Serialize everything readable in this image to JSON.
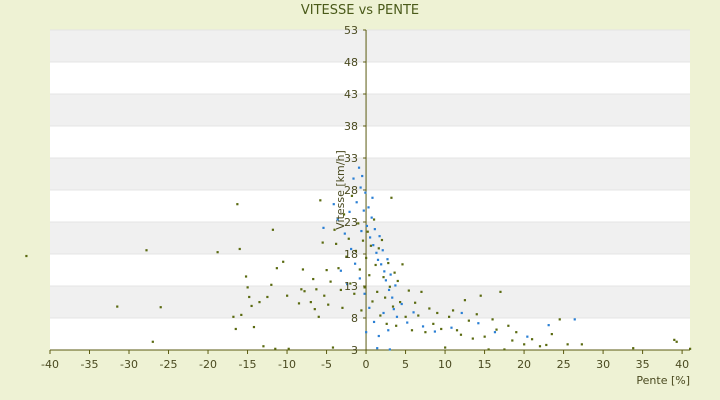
{
  "chart_data": {
    "type": "scatter",
    "title": "VITESSE vs PENTE",
    "xlabel": "Pente [%]",
    "ylabel": "Vitesse [km/h]",
    "xlim": [
      -40,
      41
    ],
    "ylim": [
      3,
      53
    ],
    "x_ticks": [
      -40,
      -35,
      -30,
      -25,
      -20,
      -15,
      -10,
      -5,
      0,
      5,
      10,
      15,
      20,
      25,
      30,
      35,
      40
    ],
    "y_ticks": [
      3,
      8,
      13,
      18,
      23,
      28,
      33,
      38,
      43,
      48,
      53
    ],
    "grid": true,
    "legend": "none",
    "colors": {
      "background": "#eef2d4",
      "band_light": "#ffffff",
      "band_grey": "#f0f0f0",
      "axis": "#5a5a10",
      "series_a": "#5a6a10",
      "series_b": "#2a7fd4"
    },
    "series": [
      {
        "color": "#5a6a10",
        "points": [
          [
            -43,
            17.7
          ],
          [
            -31.5,
            9.8
          ],
          [
            -27.8,
            18.6
          ],
          [
            -27,
            4.3
          ],
          [
            -26,
            9.7
          ],
          [
            -18.8,
            18.3
          ],
          [
            -16.8,
            8.2
          ],
          [
            -16.5,
            6.3
          ],
          [
            -16.3,
            25.8
          ],
          [
            -16,
            18.8
          ],
          [
            -15.8,
            8.5
          ],
          [
            -15.2,
            14.5
          ],
          [
            -15,
            12.8
          ],
          [
            -14.8,
            11.3
          ],
          [
            -14.5,
            9.9
          ],
          [
            -14.2,
            6.6
          ],
          [
            -13.5,
            10.5
          ],
          [
            -13,
            3.6
          ],
          [
            -12.5,
            11.3
          ],
          [
            -12,
            13.2
          ],
          [
            -11.8,
            21.8
          ],
          [
            -11.5,
            3.2
          ],
          [
            -11.3,
            15.8
          ],
          [
            -10.5,
            16.8
          ],
          [
            -10,
            11.5
          ],
          [
            -9.8,
            3.2
          ],
          [
            -8.5,
            10.3
          ],
          [
            -8.2,
            12.5
          ],
          [
            -8,
            15.6
          ],
          [
            -7.8,
            12.2
          ],
          [
            -7,
            10.5
          ],
          [
            -6.7,
            14.1
          ],
          [
            -6.5,
            9.4
          ],
          [
            -6.3,
            12.5
          ],
          [
            -6,
            8.2
          ],
          [
            -5.8,
            26.4
          ],
          [
            -5.5,
            19.8
          ],
          [
            -5.3,
            11.5
          ],
          [
            -5,
            15.5
          ],
          [
            -4.8,
            10.1
          ],
          [
            -4.5,
            13.7
          ],
          [
            -4.2,
            3.4
          ],
          [
            -4,
            21.8
          ],
          [
            -3.8,
            19.6
          ],
          [
            -3.5,
            15.8
          ],
          [
            -3.2,
            12.4
          ],
          [
            -3,
            9.6
          ],
          [
            -2.8,
            24.2
          ],
          [
            -2.5,
            17.6
          ],
          [
            -2.2,
            20.4
          ],
          [
            -2,
            13.4
          ],
          [
            -1.8,
            27.1
          ],
          [
            -1.5,
            11.8
          ],
          [
            -1.3,
            18.5
          ],
          [
            -1,
            22.8
          ],
          [
            -0.8,
            15.6
          ],
          [
            -0.6,
            9.2
          ],
          [
            -0.4,
            20.1
          ],
          [
            -0.2,
            12.8
          ],
          [
            0,
            17.4
          ],
          [
            0.2,
            21.5
          ],
          [
            0.4,
            14.7
          ],
          [
            0.6,
            19.3
          ],
          [
            0.8,
            10.6
          ],
          [
            1,
            23.4
          ],
          [
            1.2,
            16.3
          ],
          [
            1.4,
            12.1
          ],
          [
            1.6,
            18.9
          ],
          [
            1.8,
            8.4
          ],
          [
            2,
            20.2
          ],
          [
            2.2,
            14.4
          ],
          [
            2.4,
            11.2
          ],
          [
            2.6,
            7.1
          ],
          [
            2.8,
            16.6
          ],
          [
            3,
            12.9
          ],
          [
            3.2,
            26.8
          ],
          [
            3.4,
            9.8
          ],
          [
            3.6,
            15.1
          ],
          [
            3.8,
            6.8
          ],
          [
            4,
            13.8
          ],
          [
            4.3,
            10.5
          ],
          [
            4.6,
            16.4
          ],
          [
            5,
            8.2
          ],
          [
            5.4,
            12.3
          ],
          [
            5.8,
            6.1
          ],
          [
            6.2,
            10.4
          ],
          [
            6.6,
            8.4
          ],
          [
            7,
            12.1
          ],
          [
            7.5,
            5.8
          ],
          [
            8,
            9.5
          ],
          [
            8.5,
            7.1
          ],
          [
            9,
            8.8
          ],
          [
            9.5,
            6.3
          ],
          [
            10,
            3.4
          ],
          [
            10.5,
            8.2
          ],
          [
            11,
            9.2
          ],
          [
            11.5,
            6.1
          ],
          [
            12,
            5.4
          ],
          [
            12.5,
            10.8
          ],
          [
            13,
            7.6
          ],
          [
            13.5,
            4.8
          ],
          [
            14,
            8.6
          ],
          [
            14.5,
            11.5
          ],
          [
            15,
            5.1
          ],
          [
            15.5,
            3.1
          ],
          [
            16,
            7.8
          ],
          [
            16.5,
            6.2
          ],
          [
            17,
            12.1
          ],
          [
            17.5,
            3.1
          ],
          [
            18,
            6.8
          ],
          [
            18.5,
            4.5
          ],
          [
            19,
            5.8
          ],
          [
            20,
            3.9
          ],
          [
            21,
            4.7
          ],
          [
            22,
            3.6
          ],
          [
            22.8,
            3.8
          ],
          [
            23.5,
            5.5
          ],
          [
            24.5,
            7.8
          ],
          [
            25.5,
            3.9
          ],
          [
            27.3,
            3.9
          ],
          [
            33.8,
            3.3
          ],
          [
            39,
            4.6
          ],
          [
            39.3,
            4.3
          ],
          [
            41,
            3.2
          ]
        ]
      },
      {
        "color": "#2a7fd4",
        "points": [
          [
            -5.4,
            22.1
          ],
          [
            -4.1,
            25.8
          ],
          [
            -3.6,
            23.4
          ],
          [
            -2.7,
            21.2
          ],
          [
            -2.1,
            24.6
          ],
          [
            -1.6,
            29.8
          ],
          [
            -1.2,
            26.1
          ],
          [
            -0.9,
            31.5
          ],
          [
            -0.7,
            28.4
          ],
          [
            -0.5,
            30.2
          ],
          [
            -0.3,
            24.8
          ],
          [
            -0.1,
            27.6
          ],
          [
            0.1,
            22.4
          ],
          [
            0.3,
            25.3
          ],
          [
            0.5,
            20.6
          ],
          [
            0.7,
            23.7
          ],
          [
            0.9,
            19.4
          ],
          [
            1.1,
            21.9
          ],
          [
            1.3,
            18.2
          ],
          [
            1.5,
            17.1
          ],
          [
            1.7,
            20.8
          ],
          [
            1.9,
            16.4
          ],
          [
            2.1,
            18.6
          ],
          [
            2.3,
            15.3
          ],
          [
            2.5,
            13.9
          ],
          [
            2.7,
            17.2
          ],
          [
            2.9,
            12.4
          ],
          [
            3.1,
            14.8
          ],
          [
            3.3,
            11.2
          ],
          [
            3.5,
            9.4
          ],
          [
            3.7,
            13.1
          ],
          [
            3.9,
            8.2
          ],
          [
            -1.4,
            16.5
          ],
          [
            -0.8,
            14.2
          ],
          [
            -0.2,
            11.8
          ],
          [
            0.4,
            9.6
          ],
          [
            1,
            7.4
          ],
          [
            1.6,
            5.2
          ],
          [
            2.2,
            8.8
          ],
          [
            2.8,
            6.1
          ],
          [
            4.5,
            10.2
          ],
          [
            5.2,
            7.3
          ],
          [
            6,
            8.9
          ],
          [
            7.2,
            6.7
          ],
          [
            8.7,
            5.9
          ],
          [
            10.8,
            6.5
          ],
          [
            12.1,
            8.8
          ],
          [
            14.2,
            7.2
          ],
          [
            16.3,
            5.8
          ],
          [
            20.4,
            5.1
          ],
          [
            23.1,
            6.9
          ],
          [
            26.4,
            7.8
          ],
          [
            -3.2,
            15.4
          ],
          [
            -2.4,
            13.3
          ],
          [
            -1.9,
            18.8
          ],
          [
            0,
            5.8
          ],
          [
            0.8,
            26.8
          ],
          [
            1.4,
            3.3
          ],
          [
            3,
            3.1
          ],
          [
            -0.6,
            21.6
          ]
        ]
      }
    ]
  }
}
